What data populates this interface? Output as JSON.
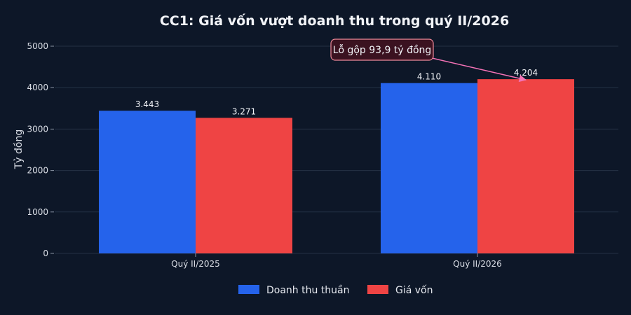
{
  "chart_data": {
    "type": "bar",
    "title": "CC1: Giá vốn vượt doanh thu trong quý II/2026",
    "xlabel": "",
    "ylabel": "Tỷ đồng",
    "categories": [
      "Quý II/2025",
      "Quý II/2026"
    ],
    "ylim": [
      0,
      5000
    ],
    "yticks": [
      0,
      1000,
      2000,
      3000,
      4000,
      5000
    ],
    "grid": true,
    "legend_position": "bottom-center",
    "series": [
      {
        "name": "Doanh thu thuần",
        "values": [
          3443,
          4110
        ],
        "labels": [
          "3.443",
          "4.110"
        ],
        "color": "#2563eb"
      },
      {
        "name": "Giá vốn",
        "values": [
          3271,
          4204
        ],
        "labels": [
          "3.271",
          "4.204"
        ],
        "color": "#ef4444"
      }
    ],
    "annotation": {
      "text": "Lỗ gộp 93,9 tỷ đồng",
      "category": "Quý II/2026",
      "series": "Giá vốn",
      "value": 4204,
      "box_color": "#3b1220",
      "border_color": "#f08a9a",
      "arrow_color": "#f472b6"
    }
  }
}
